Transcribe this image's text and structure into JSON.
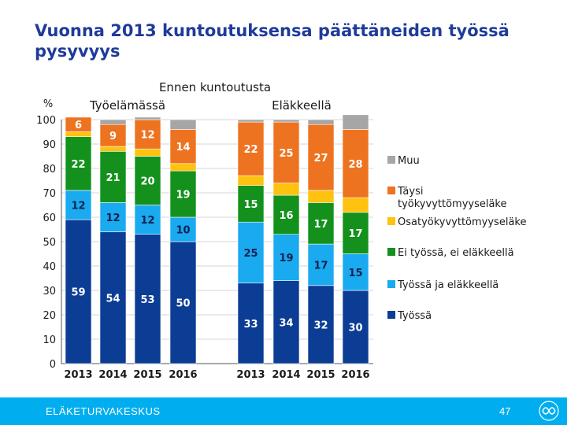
{
  "header": {
    "title": "Vuonna 2013 kuntoutuksensa päättäneiden työssä pysyvyys"
  },
  "chart_data": {
    "type": "bar",
    "stacked": true,
    "title": "Ennen  kuntoutusta",
    "ylabel": "%",
    "ylim": [
      0,
      100
    ],
    "yticks": [
      0,
      10,
      20,
      30,
      40,
      50,
      60,
      70,
      80,
      90,
      100
    ],
    "groups": [
      {
        "name": "Työelämässä",
        "categories": [
          "2013",
          "2014",
          "2015",
          "2016"
        ]
      },
      {
        "name": "Eläkkeellä",
        "categories": [
          "2013",
          "2014",
          "2015",
          "2016"
        ]
      }
    ],
    "series": [
      {
        "name": "Työssä",
        "color": "#0c3d94",
        "values": [
          [
            59,
            54,
            53,
            50
          ],
          [
            33,
            34,
            32,
            30
          ]
        ]
      },
      {
        "name": "Työssä ja eläkkeellä",
        "color": "#1aaaf0",
        "values": [
          [
            12,
            12,
            12,
            10
          ],
          [
            25,
            19,
            17,
            15
          ]
        ]
      },
      {
        "name": "Ei työssä, ei eläkkeellä",
        "color": "#14911c",
        "values": [
          [
            22,
            21,
            20,
            19
          ],
          [
            15,
            16,
            17,
            17
          ]
        ]
      },
      {
        "name": "Osatyökyvyttömyyseläke",
        "color": "#ffc20e",
        "values": [
          [
            2,
            2,
            3,
            3
          ],
          [
            4,
            5,
            5,
            6
          ]
        ]
      },
      {
        "name": "Täysi työkyvyttömyyseläke",
        "color": "#ee7320",
        "legend_lines": [
          "Täysi",
          "työkyvyttömyyseläke"
        ],
        "values": [
          [
            6,
            9,
            12,
            14
          ],
          [
            22,
            25,
            27,
            28
          ]
        ]
      },
      {
        "name": "Muu",
        "color": "#a6a6a6",
        "values": [
          [
            0,
            2,
            1,
            4
          ],
          [
            1,
            1,
            2,
            6
          ]
        ]
      }
    ],
    "labels": {
      "Työssä": [
        [
          "59",
          "54",
          "53",
          "50"
        ],
        [
          "33",
          "34",
          "32",
          "30"
        ]
      ],
      "Työssä ja eläkkeellä": [
        [
          "12",
          "12",
          "12",
          "10"
        ],
        [
          "25",
          "19",
          "17",
          "15"
        ]
      ],
      "Ei työssä, ei eläkkeellä": [
        [
          "22",
          "21",
          "20",
          "19"
        ],
        [
          "15",
          "16",
          "17",
          "17"
        ]
      ],
      "Täysi työkyvyttömyyseläke": [
        [
          "6",
          "9",
          "12",
          "14"
        ],
        [
          "22",
          "25",
          "27",
          "28"
        ]
      ]
    }
  },
  "footer": {
    "organization": "ELÄKETURVAKESKUS",
    "page_number": "47"
  }
}
